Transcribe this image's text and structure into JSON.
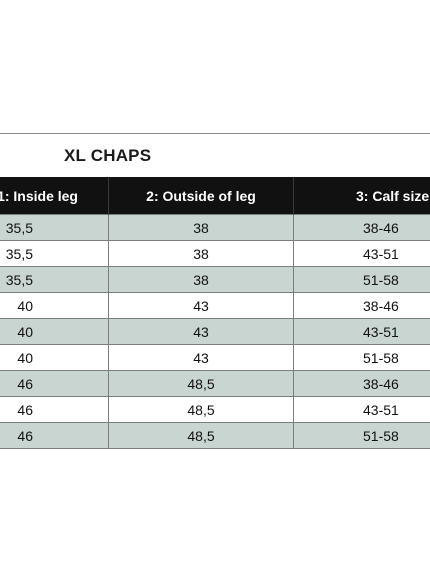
{
  "title": "XL CHAPS",
  "table": {
    "headers": [
      "1: Inside leg",
      "2: Outside of leg",
      "3: Calf size"
    ],
    "rows": [
      [
        "35,5",
        "38",
        "38-46"
      ],
      [
        "35,5",
        "38",
        "43-51"
      ],
      [
        "35,5",
        "38",
        "51-58"
      ],
      [
        "40",
        "43",
        "38-46"
      ],
      [
        "40",
        "43",
        "43-51"
      ],
      [
        "40",
        "43",
        "51-58"
      ],
      [
        "46",
        "48,5",
        "38-46"
      ],
      [
        "46",
        "48,5",
        "43-51"
      ],
      [
        "46",
        "48,5",
        "51-58"
      ]
    ]
  },
  "colors": {
    "header_background": "#111111",
    "header_text": "#ffffff",
    "shaded_row": "#c9d5d1",
    "plain_row": "#ffffff"
  }
}
